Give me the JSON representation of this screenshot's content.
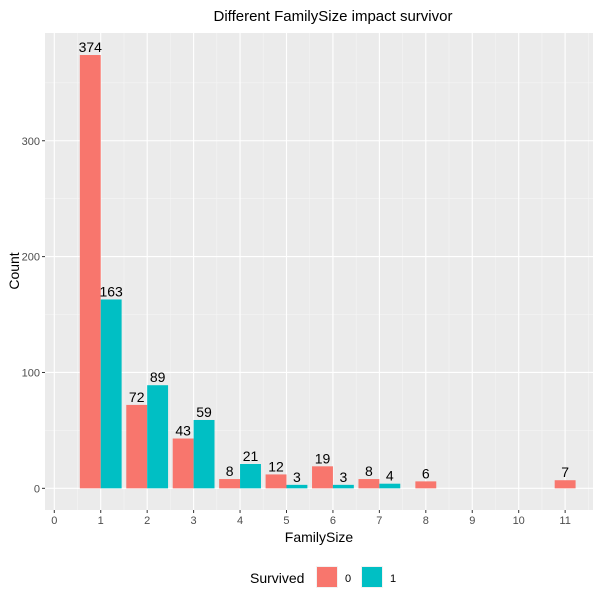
{
  "chart_data": {
    "type": "bar",
    "title": "Different FamilySize impact survivor",
    "xlabel": "FamilySize",
    "ylabel": "Count",
    "x_ticks": [
      0,
      1,
      2,
      3,
      4,
      5,
      6,
      7,
      8,
      9,
      10,
      11
    ],
    "y_ticks": [
      0,
      100,
      200,
      300
    ],
    "xlim": [
      -0.2,
      11.6
    ],
    "ylim": [
      -18.7,
      393
    ],
    "grid": true,
    "legend": {
      "title": "Survived",
      "position": "bottom"
    },
    "series": [
      {
        "name": "0",
        "color": "#F8766D",
        "points": [
          {
            "x": 1,
            "y": 374
          },
          {
            "x": 2,
            "y": 72
          },
          {
            "x": 3,
            "y": 43
          },
          {
            "x": 4,
            "y": 8
          },
          {
            "x": 5,
            "y": 12
          },
          {
            "x": 6,
            "y": 19
          },
          {
            "x": 7,
            "y": 8
          },
          {
            "x": 8,
            "y": 6
          },
          {
            "x": 11,
            "y": 7
          }
        ]
      },
      {
        "name": "1",
        "color": "#00BFC4",
        "points": [
          {
            "x": 1,
            "y": 163
          },
          {
            "x": 2,
            "y": 89
          },
          {
            "x": 3,
            "y": 59
          },
          {
            "x": 4,
            "y": 21
          },
          {
            "x": 5,
            "y": 3
          },
          {
            "x": 6,
            "y": 3
          },
          {
            "x": 7,
            "y": 4
          }
        ]
      }
    ]
  }
}
